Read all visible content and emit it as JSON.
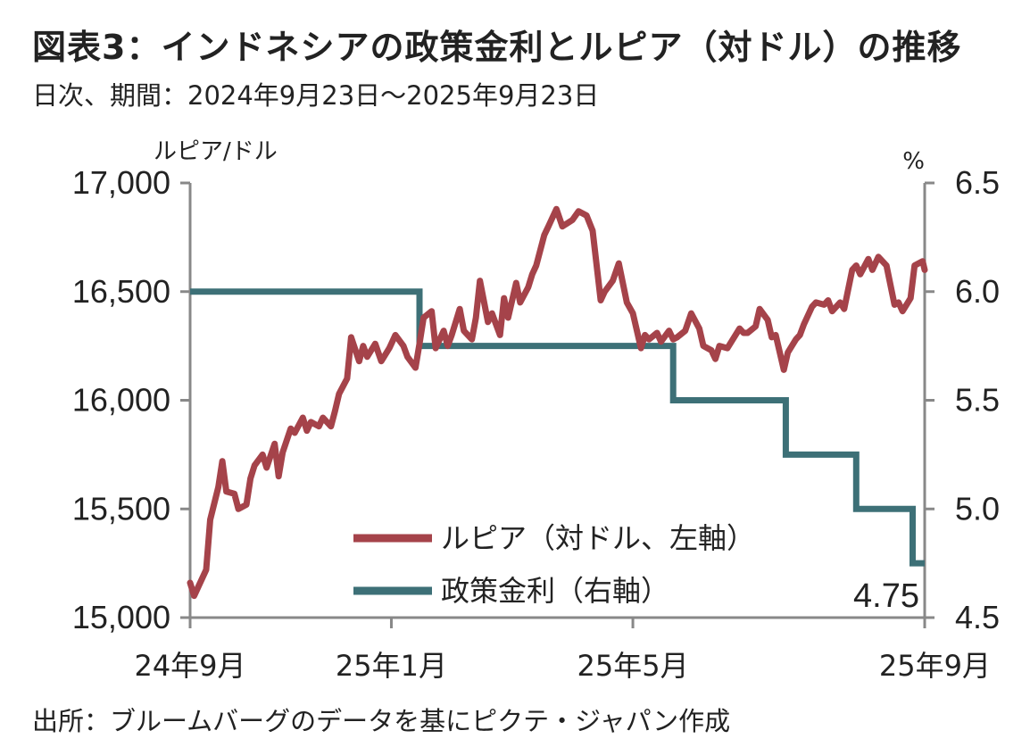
{
  "title": "図表3：インドネシアの政策金利とルピア（対ドル）の推移",
  "subtitle": "日次、期間：2024年9月23日～2025年9月23日",
  "source": "出所：ブルームバーグのデータを基にピクテ・ジャパン作成",
  "colors": {
    "rupiah": "#a5434a",
    "rate": "#3d7077",
    "axis": "#888888"
  },
  "chart_data": {
    "type": "line",
    "x_range": [
      "2024-09-23",
      "2025-09-23"
    ],
    "x_ticks": [
      {
        "date": "2024-09-23",
        "label": "24年9月"
      },
      {
        "date": "2025-01-01",
        "label": "25年1月"
      },
      {
        "date": "2025-05-01",
        "label": "25年5月"
      },
      {
        "date": "2025-09-23",
        "label": "25年9月"
      }
    ],
    "y_left": {
      "unit": "ルピア/ドル",
      "ylim": [
        15000,
        17000
      ],
      "ticks": [
        15000,
        15500,
        16000,
        16500,
        17000
      ],
      "tick_labels": [
        "15,000",
        "15,500",
        "16,000",
        "16,500",
        "17,000"
      ]
    },
    "y_right": {
      "unit": "%",
      "ylim": [
        4.5,
        6.5
      ],
      "ticks": [
        4.5,
        5.0,
        5.5,
        6.0,
        6.5
      ],
      "tick_labels": [
        "4.5",
        "5.0",
        "5.5",
        "6.0",
        "6.5"
      ]
    },
    "grid": false,
    "legend_position": "bottom-right",
    "annotation": "4.75",
    "series": [
      {
        "name": "ルピア（対ドル、左軸）",
        "axis": "left",
        "points": [
          [
            "2024-09-23",
            15160
          ],
          [
            "2024-09-25",
            15100
          ],
          [
            "2024-09-27",
            15140
          ],
          [
            "2024-10-01",
            15220
          ],
          [
            "2024-10-03",
            15450
          ],
          [
            "2024-10-07",
            15600
          ],
          [
            "2024-10-09",
            15720
          ],
          [
            "2024-10-11",
            15580
          ],
          [
            "2024-10-15",
            15570
          ],
          [
            "2024-10-17",
            15500
          ],
          [
            "2024-10-21",
            15520
          ],
          [
            "2024-10-23",
            15640
          ],
          [
            "2024-10-25",
            15700
          ],
          [
            "2024-10-29",
            15750
          ],
          [
            "2024-10-31",
            15690
          ],
          [
            "2024-11-04",
            15800
          ],
          [
            "2024-11-06",
            15650
          ],
          [
            "2024-11-08",
            15760
          ],
          [
            "2024-11-12",
            15870
          ],
          [
            "2024-11-14",
            15850
          ],
          [
            "2024-11-18",
            15920
          ],
          [
            "2024-11-20",
            15860
          ],
          [
            "2024-11-22",
            15900
          ],
          [
            "2024-11-26",
            15880
          ],
          [
            "2024-11-28",
            15920
          ],
          [
            "2024-12-02",
            15880
          ],
          [
            "2024-12-04",
            15950
          ],
          [
            "2024-12-06",
            16030
          ],
          [
            "2024-12-10",
            16100
          ],
          [
            "2024-12-12",
            16290
          ],
          [
            "2024-12-16",
            16180
          ],
          [
            "2024-12-18",
            16250
          ],
          [
            "2024-12-20",
            16200
          ],
          [
            "2024-12-24",
            16260
          ],
          [
            "2024-12-27",
            16180
          ],
          [
            "2024-12-31",
            16240
          ],
          [
            "2025-01-03",
            16300
          ],
          [
            "2025-01-07",
            16250
          ],
          [
            "2025-01-09",
            16200
          ],
          [
            "2025-01-13",
            16150
          ],
          [
            "2025-01-15",
            16260
          ],
          [
            "2025-01-17",
            16380
          ],
          [
            "2025-01-21",
            16410
          ],
          [
            "2025-01-23",
            16240
          ],
          [
            "2025-01-27",
            16320
          ],
          [
            "2025-01-29",
            16250
          ],
          [
            "2025-01-31",
            16300
          ],
          [
            "2025-02-04",
            16420
          ],
          [
            "2025-02-06",
            16320
          ],
          [
            "2025-02-10",
            16280
          ],
          [
            "2025-02-12",
            16380
          ],
          [
            "2025-02-14",
            16550
          ],
          [
            "2025-02-18",
            16360
          ],
          [
            "2025-02-20",
            16400
          ],
          [
            "2025-02-24",
            16300
          ],
          [
            "2025-02-26",
            16470
          ],
          [
            "2025-02-28",
            16380
          ],
          [
            "2025-03-04",
            16540
          ],
          [
            "2025-03-06",
            16450
          ],
          [
            "2025-03-10",
            16520
          ],
          [
            "2025-03-12",
            16580
          ],
          [
            "2025-03-14",
            16620
          ],
          [
            "2025-03-18",
            16760
          ],
          [
            "2025-03-20",
            16800
          ],
          [
            "2025-03-24",
            16880
          ],
          [
            "2025-03-27",
            16800
          ],
          [
            "2025-04-01",
            16830
          ],
          [
            "2025-04-04",
            16870
          ],
          [
            "2025-04-08",
            16850
          ],
          [
            "2025-04-11",
            16780
          ],
          [
            "2025-04-15",
            16460
          ],
          [
            "2025-04-17",
            16500
          ],
          [
            "2025-04-21",
            16550
          ],
          [
            "2025-04-24",
            16630
          ],
          [
            "2025-04-28",
            16450
          ],
          [
            "2025-05-01",
            16400
          ],
          [
            "2025-05-05",
            16240
          ],
          [
            "2025-05-07",
            16300
          ],
          [
            "2025-05-09",
            16280
          ],
          [
            "2025-05-13",
            16310
          ],
          [
            "2025-05-15",
            16270
          ],
          [
            "2025-05-19",
            16320
          ],
          [
            "2025-05-21",
            16280
          ],
          [
            "2025-05-23",
            16290
          ],
          [
            "2025-05-27",
            16320
          ],
          [
            "2025-05-30",
            16400
          ],
          [
            "2025-06-03",
            16330
          ],
          [
            "2025-06-05",
            16250
          ],
          [
            "2025-06-09",
            16230
          ],
          [
            "2025-06-11",
            16190
          ],
          [
            "2025-06-13",
            16250
          ],
          [
            "2025-06-17",
            16240
          ],
          [
            "2025-06-19",
            16270
          ],
          [
            "2025-06-23",
            16330
          ],
          [
            "2025-06-25",
            16310
          ],
          [
            "2025-06-27",
            16310
          ],
          [
            "2025-07-01",
            16340
          ],
          [
            "2025-07-03",
            16420
          ],
          [
            "2025-07-07",
            16370
          ],
          [
            "2025-07-09",
            16290
          ],
          [
            "2025-07-11",
            16300
          ],
          [
            "2025-07-15",
            16140
          ],
          [
            "2025-07-17",
            16220
          ],
          [
            "2025-07-21",
            16280
          ],
          [
            "2025-07-23",
            16300
          ],
          [
            "2025-07-25",
            16350
          ],
          [
            "2025-07-29",
            16430
          ],
          [
            "2025-07-31",
            16450
          ],
          [
            "2025-08-04",
            16440
          ],
          [
            "2025-08-06",
            16460
          ],
          [
            "2025-08-08",
            16410
          ],
          [
            "2025-08-12",
            16450
          ],
          [
            "2025-08-14",
            16420
          ],
          [
            "2025-08-18",
            16600
          ],
          [
            "2025-08-20",
            16620
          ],
          [
            "2025-08-22",
            16580
          ],
          [
            "2025-08-26",
            16650
          ],
          [
            "2025-08-28",
            16600
          ],
          [
            "2025-08-31",
            16660
          ],
          [
            "2025-09-04",
            16620
          ],
          [
            "2025-09-08",
            16440
          ],
          [
            "2025-09-10",
            16450
          ],
          [
            "2025-09-12",
            16410
          ],
          [
            "2025-09-16",
            16470
          ],
          [
            "2025-09-18",
            16620
          ],
          [
            "2025-09-22",
            16640
          ],
          [
            "2025-09-23",
            16600
          ]
        ]
      },
      {
        "name": "政策金利（右軸）",
        "axis": "right",
        "step": true,
        "points": [
          [
            "2024-09-23",
            6.0
          ],
          [
            "2025-01-15",
            5.75
          ],
          [
            "2025-05-21",
            5.5
          ],
          [
            "2025-07-16",
            5.25
          ],
          [
            "2025-08-20",
            5.0
          ],
          [
            "2025-09-17",
            4.75
          ],
          [
            "2025-09-23",
            4.75
          ]
        ]
      }
    ]
  }
}
